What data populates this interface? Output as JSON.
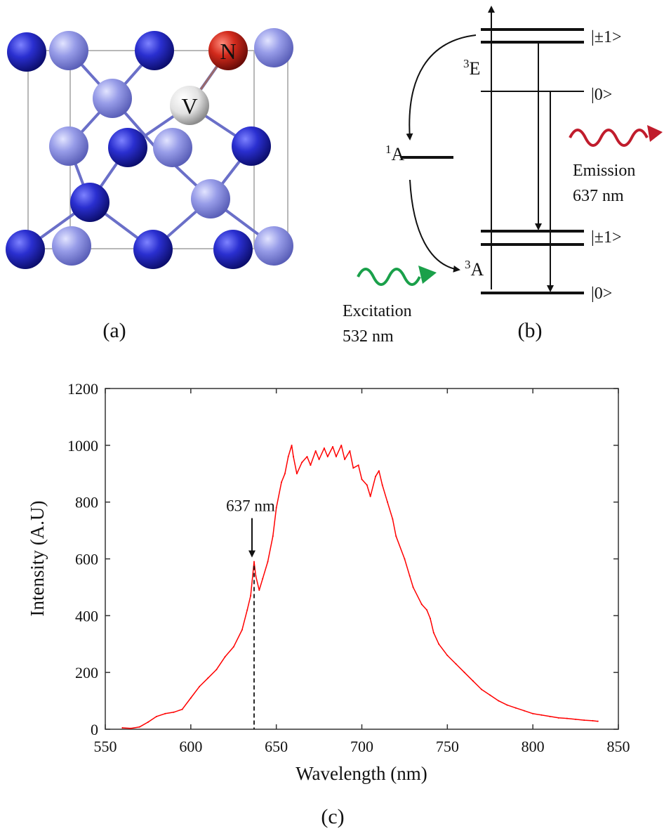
{
  "panels": {
    "a": {
      "label": "(a)",
      "atoms": {
        "nitrogen": "N",
        "vacancy": "V"
      },
      "colors": {
        "dark_carbon": "#1f22b8",
        "light_carbon": "#8d92e6",
        "nitrogen": "#c0201a",
        "vacancy": "#e4e4e4"
      }
    },
    "b": {
      "label": "(b)",
      "levels": {
        "triplet_excited": {
          "sup": "3",
          "main": "E"
        },
        "singlet": {
          "sup": "1",
          "main": "A"
        },
        "triplet_ground": {
          "sup": "3",
          "main": "A"
        },
        "spin_pm1_upper": "|±1>",
        "spin_0_upper": "|0>",
        "spin_pm1_lower": "|±1>",
        "spin_0_lower": "|0>"
      },
      "emission": {
        "label": "Emission",
        "wavelength": "637 nm",
        "color": "#c01c2c"
      },
      "excitation": {
        "label": "Excitation",
        "wavelength": "532 nm",
        "color": "#1aa04a"
      }
    },
    "c": {
      "label": "(c)"
    }
  },
  "chart_data": {
    "type": "line",
    "title": "",
    "xlabel": "Wavelength (nm)",
    "ylabel": "Intensity (A.U)",
    "xlim": [
      550,
      850
    ],
    "ylim": [
      0,
      1200
    ],
    "xticks": [
      550,
      600,
      650,
      700,
      750,
      800,
      850
    ],
    "yticks": [
      0,
      200,
      400,
      600,
      800,
      1000,
      1200
    ],
    "grid": false,
    "series": [
      {
        "color": "#ff0000",
        "x": [
          560,
          565,
          570,
          575,
          580,
          585,
          590,
          595,
          600,
          605,
          610,
          615,
          620,
          625,
          630,
          633,
          635,
          637,
          638,
          640,
          642,
          645,
          648,
          650,
          653,
          655,
          657,
          659,
          660,
          662,
          665,
          668,
          670,
          673,
          675,
          678,
          680,
          683,
          685,
          688,
          690,
          693,
          695,
          698,
          700,
          703,
          705,
          708,
          710,
          712,
          715,
          718,
          720,
          725,
          728,
          730,
          735,
          738,
          740,
          742,
          745,
          750,
          755,
          760,
          765,
          770,
          775,
          780,
          785,
          790,
          795,
          800,
          805,
          810,
          815,
          820,
          825,
          830,
          835,
          838
        ],
        "y": [
          5,
          3,
          8,
          25,
          45,
          55,
          60,
          70,
          110,
          150,
          180,
          210,
          255,
          290,
          350,
          420,
          470,
          590,
          540,
          490,
          530,
          590,
          680,
          780,
          870,
          900,
          960,
          1000,
          960,
          900,
          940,
          960,
          930,
          980,
          950,
          990,
          960,
          995,
          960,
          1000,
          950,
          980,
          920,
          930,
          880,
          860,
          820,
          890,
          910,
          860,
          800,
          740,
          680,
          600,
          540,
          500,
          440,
          420,
          390,
          340,
          300,
          260,
          230,
          200,
          170,
          140,
          120,
          100,
          85,
          75,
          65,
          55,
          50,
          45,
          40,
          38,
          35,
          32,
          30,
          28
        ]
      }
    ],
    "annotations": [
      {
        "text": "637 nm",
        "x": 637,
        "y": 590
      }
    ]
  }
}
